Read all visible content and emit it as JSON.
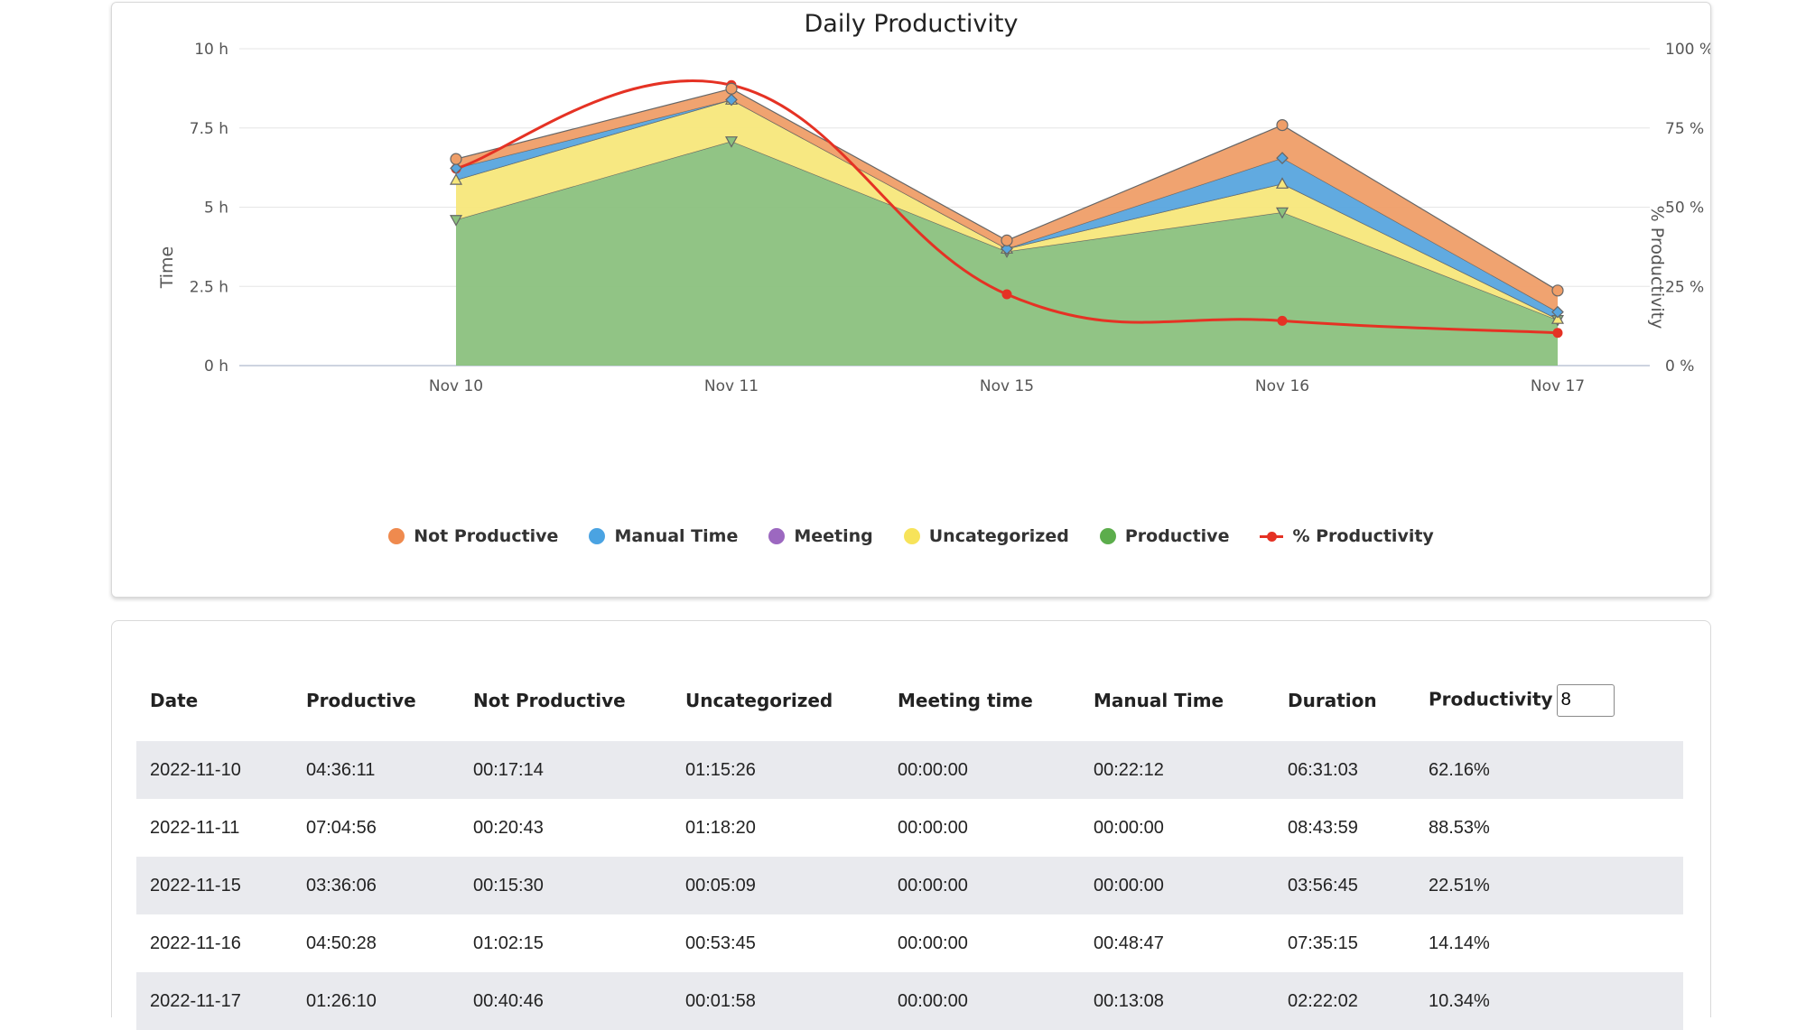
{
  "chart_data": {
    "type": "area",
    "title": "Daily Productivity",
    "ylabel": "Time",
    "y2label": "% Productivity",
    "categories": [
      "Nov 10",
      "Nov 11",
      "Nov 15",
      "Nov 16",
      "Nov 17"
    ],
    "ylim": [
      0,
      10
    ],
    "y_ticks": [
      "0 h",
      "2.5 h",
      "5 h",
      "7.5 h",
      "10 h"
    ],
    "y2lim": [
      0,
      100
    ],
    "y2_ticks": [
      "0 %",
      "25 %",
      "50 %",
      "75 %",
      "100 %"
    ],
    "stacked": true,
    "grid": true,
    "legend_position": "bottom",
    "series": [
      {
        "name": "Productive",
        "type": "area",
        "unit": "h",
        "color": "#8bc17e",
        "marker": "triangle-down",
        "values": [
          4.6,
          7.08,
          3.6,
          4.84,
          1.44
        ]
      },
      {
        "name": "Uncategorized",
        "type": "area",
        "unit": "h",
        "color": "#f7e77b",
        "marker": "triangle",
        "values": [
          1.26,
          1.31,
          0.09,
          0.9,
          0.03
        ]
      },
      {
        "name": "Meeting",
        "type": "area",
        "unit": "h",
        "color": "#9c68c0",
        "marker": "circle",
        "values": [
          0,
          0,
          0,
          0,
          0
        ]
      },
      {
        "name": "Manual Time",
        "type": "area",
        "unit": "h",
        "color": "#58a5de",
        "marker": "diamond",
        "values": [
          0.37,
          0,
          0,
          0.81,
          0.22
        ]
      },
      {
        "name": "Not Productive",
        "type": "area",
        "unit": "h",
        "color": "#ef9e68",
        "marker": "circle",
        "values": [
          0.29,
          0.35,
          0.26,
          1.04,
          0.68
        ]
      },
      {
        "name": "% Productivity",
        "type": "line",
        "unit": "%",
        "axis": "right",
        "color": "#e53224",
        "marker": "circle",
        "values": [
          62.16,
          88.53,
          22.51,
          14.14,
          10.34
        ]
      }
    ],
    "legend_order": [
      "Not Productive",
      "Manual Time",
      "Meeting",
      "Uncategorized",
      "Productive",
      "% Productivity"
    ]
  },
  "table": {
    "columns": [
      "Date",
      "Productive",
      "Not Productive",
      "Uncategorized",
      "Meeting time",
      "Manual Time",
      "Duration",
      "Productivity"
    ],
    "productivity_input_value": "8",
    "rows": [
      [
        "2022-11-10",
        "04:36:11",
        "00:17:14",
        "01:15:26",
        "00:00:00",
        "00:22:12",
        "06:31:03",
        "62.16%"
      ],
      [
        "2022-11-11",
        "07:04:56",
        "00:20:43",
        "01:18:20",
        "00:00:00",
        "00:00:00",
        "08:43:59",
        "88.53%"
      ],
      [
        "2022-11-15",
        "03:36:06",
        "00:15:30",
        "00:05:09",
        "00:00:00",
        "00:00:00",
        "03:56:45",
        "22.51%"
      ],
      [
        "2022-11-16",
        "04:50:28",
        "01:02:15",
        "00:53:45",
        "00:00:00",
        "00:48:47",
        "07:35:15",
        "14.14%"
      ],
      [
        "2022-11-17",
        "01:26:10",
        "00:40:46",
        "00:01:58",
        "00:00:00",
        "00:13:08",
        "02:22:02",
        "10.34%"
      ]
    ]
  }
}
